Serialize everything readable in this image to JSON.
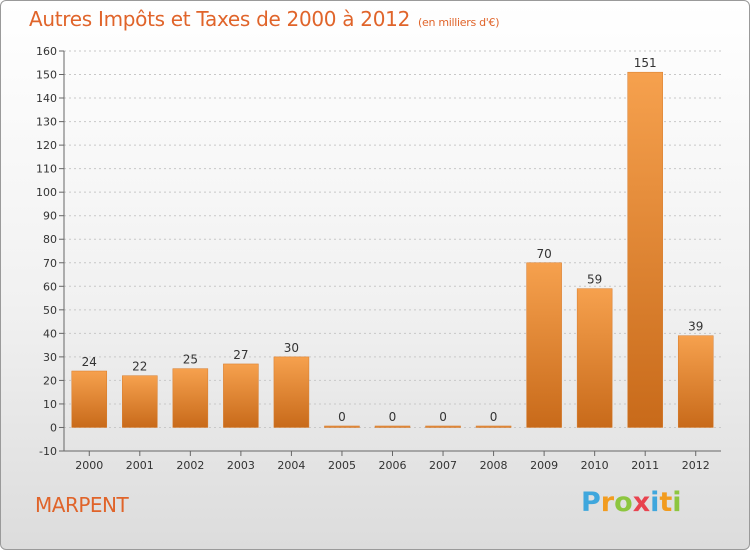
{
  "title": "Autres Impôts et Taxes de 2000 à 2012",
  "unit": "(en milliers d'€)",
  "commune": "MARPENT",
  "logo": {
    "letters": [
      "P",
      "r",
      "o",
      "x",
      "i",
      "t",
      "i"
    ],
    "colors": [
      "#3fa7dd",
      "#f29c1f",
      "#8dc63f",
      "#e8434f",
      "#3fa7dd",
      "#f29c1f",
      "#8dc63f"
    ]
  },
  "colors": {
    "bar_light": "#f6a14e",
    "bar_dark": "#c86a1a",
    "grid": "#c8c8c8",
    "accent": "#e0642a"
  },
  "chart_data": {
    "type": "bar",
    "title": "Autres Impôts et Taxes de 2000 à 2012",
    "xlabel": "",
    "ylabel": "",
    "categories": [
      "2000",
      "2001",
      "2002",
      "2003",
      "2004",
      "2005",
      "2006",
      "2007",
      "2008",
      "2009",
      "2010",
      "2011",
      "2012"
    ],
    "values": [
      24,
      22,
      25,
      27,
      30,
      0,
      0,
      0,
      0,
      70,
      59,
      151,
      39
    ],
    "ylim": [
      -10,
      160
    ],
    "yticks": [
      -10,
      0,
      10,
      20,
      30,
      40,
      50,
      60,
      70,
      80,
      90,
      100,
      110,
      120,
      130,
      140,
      150,
      160
    ],
    "grid": true
  }
}
